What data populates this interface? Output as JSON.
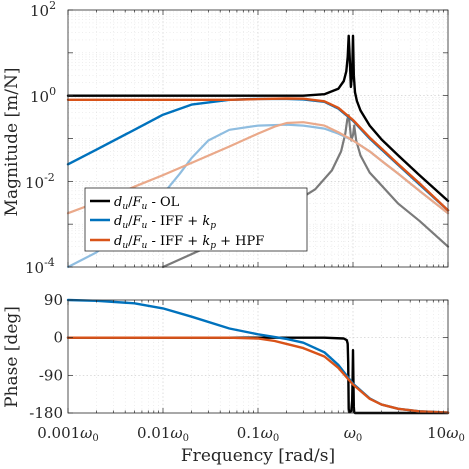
{
  "chart_data": [
    {
      "type": "line",
      "panel": "magnitude",
      "ylabel": "Magnitude [m/N]",
      "yscale": "log",
      "xscale": "log",
      "xlim": [
        0.001,
        10
      ],
      "ylim": [
        0.0001,
        100
      ],
      "ytick_labels": [
        "10^-4",
        "10^-2",
        "10^0",
        "10^2"
      ],
      "grid": true,
      "legend_placement": "lower-left",
      "legend": [
        {
          "label": "d_u/F_u - OL",
          "color": "#000000"
        },
        {
          "label": "d_u/F_u - IFF + k_p",
          "color": "#0072BD"
        },
        {
          "label": "d_u/F_u - IFF + k_p + HPF",
          "color": "#D95319"
        }
      ],
      "series": [
        {
          "name": "d_u/F_u - OL",
          "color": "#000000",
          "width": 2.4,
          "x": [
            0.001,
            0.01,
            0.1,
            0.3,
            0.5,
            0.7,
            0.8,
            0.85,
            0.88,
            0.9,
            0.92,
            0.95,
            0.98,
            1.0,
            1.02,
            1.05,
            1.1,
            1.2,
            1.5,
            2,
            3,
            5,
            10
          ],
          "y": [
            1.0,
            1.0,
            1.0,
            1.0,
            1.08,
            1.45,
            2.2,
            3.7,
            8.0,
            25.0,
            9.0,
            1.6,
            3.5,
            25.0,
            3.0,
            1.2,
            0.75,
            0.45,
            0.2,
            0.095,
            0.04,
            0.014,
            0.0035
          ]
        },
        {
          "name": "d_u/F_u - OL (secondary)",
          "color": "#7a7a7a",
          "width": 2.2,
          "x": [
            0.01,
            0.05,
            0.1,
            0.2,
            0.4,
            0.6,
            0.75,
            0.83,
            0.87,
            0.9,
            0.93,
            0.96,
            1.0,
            1.03,
            1.08,
            1.2,
            1.5,
            2,
            3,
            5,
            10
          ],
          "y": [
            0.0001,
            0.0005,
            0.0011,
            0.0025,
            0.0065,
            0.018,
            0.05,
            0.13,
            0.28,
            0.35,
            0.18,
            0.09,
            0.12,
            0.2,
            0.09,
            0.04,
            0.016,
            0.008,
            0.003,
            0.0012,
            0.0003
          ]
        },
        {
          "name": "d_u/F_u - IFF + k_p",
          "color": "#0072BD",
          "width": 2.4,
          "x": [
            0.001,
            0.002,
            0.005,
            0.01,
            0.02,
            0.05,
            0.1,
            0.2,
            0.3,
            0.5,
            0.7,
            1.0,
            1.5,
            2,
            3,
            5,
            10
          ],
          "y": [
            0.025,
            0.055,
            0.16,
            0.36,
            0.62,
            0.8,
            0.84,
            0.84,
            0.82,
            0.72,
            0.5,
            0.26,
            0.1,
            0.055,
            0.024,
            0.0085,
            0.0021
          ]
        },
        {
          "name": "d_u/F_u - IFF + k_p (secondary)",
          "color": "#8fbde0",
          "width": 2.2,
          "x": [
            0.001,
            0.002,
            0.005,
            0.01,
            0.015,
            0.02,
            0.03,
            0.05,
            0.1,
            0.2,
            0.3,
            0.5,
            0.7,
            1.0,
            1.5,
            2,
            3,
            5,
            10
          ],
          "y": [
            0.0001,
            0.00022,
            0.0011,
            0.005,
            0.015,
            0.035,
            0.09,
            0.16,
            0.2,
            0.21,
            0.2,
            0.17,
            0.13,
            0.09,
            0.05,
            0.03,
            0.015,
            0.006,
            0.0018
          ]
        },
        {
          "name": "d_u/F_u - IFF + k_p + HPF",
          "color": "#D95319",
          "width": 2.4,
          "x": [
            0.001,
            0.01,
            0.05,
            0.1,
            0.2,
            0.3,
            0.5,
            0.7,
            1.0,
            1.5,
            2,
            3,
            5,
            10
          ],
          "y": [
            0.8,
            0.8,
            0.8,
            0.83,
            0.86,
            0.85,
            0.74,
            0.52,
            0.27,
            0.105,
            0.058,
            0.025,
            0.009,
            0.0021
          ]
        },
        {
          "name": "d_u/F_u - IFF + k_p + HPF (secondary)",
          "color": "#eaa98a",
          "width": 2.2,
          "x": [
            0.001,
            0.002,
            0.005,
            0.01,
            0.02,
            0.05,
            0.1,
            0.15,
            0.2,
            0.3,
            0.5,
            0.7,
            1.0,
            1.5,
            2,
            3,
            5,
            10
          ],
          "y": [
            0.0018,
            0.0032,
            0.0075,
            0.014,
            0.027,
            0.065,
            0.13,
            0.19,
            0.23,
            0.24,
            0.2,
            0.14,
            0.09,
            0.05,
            0.03,
            0.015,
            0.006,
            0.0018
          ]
        }
      ]
    },
    {
      "type": "line",
      "panel": "phase",
      "ylabel": "Phase [deg]",
      "xlabel": "Frequency [rad/s]",
      "xscale": "log",
      "xlim": [
        0.001,
        10
      ],
      "ylim": [
        -180,
        90
      ],
      "yticks": [
        -180,
        -90,
        0,
        90
      ],
      "xtick_labels": [
        "0.001ω₀",
        "0.01ω₀",
        "0.1ω₀",
        "ω₀",
        "10ω₀"
      ],
      "grid": true,
      "series": [
        {
          "name": "d_u/F_u - OL",
          "color": "#000000",
          "width": 2.4,
          "x": [
            0.001,
            0.01,
            0.1,
            0.5,
            0.8,
            0.86,
            0.88,
            0.89,
            0.9,
            0.91,
            0.93,
            0.96,
            0.98,
            0.99,
            1.0,
            1.01,
            1.02,
            1.03,
            1.05,
            1.1,
            1.3,
            2,
            5,
            10
          ],
          "y": [
            0,
            0,
            0,
            0,
            -2,
            -6,
            -15,
            -60,
            -170,
            -178,
            -178,
            -175,
            -150,
            -100,
            -30,
            -100,
            -165,
            -178,
            -180,
            -180,
            -180,
            -180,
            -180,
            -180
          ]
        },
        {
          "name": "d_u/F_u - IFF + k_p",
          "color": "#0072BD",
          "width": 2.4,
          "x": [
            0.001,
            0.002,
            0.005,
            0.01,
            0.02,
            0.05,
            0.1,
            0.2,
            0.3,
            0.5,
            0.7,
            1.0,
            1.5,
            2,
            3,
            5,
            10
          ],
          "y": [
            90,
            88,
            82,
            70,
            50,
            22,
            8,
            -3,
            -12,
            -35,
            -65,
            -110,
            -145,
            -160,
            -170,
            -176,
            -179
          ]
        },
        {
          "name": "d_u/F_u - IFF + k_p + HPF",
          "color": "#D95319",
          "width": 2.4,
          "x": [
            0.001,
            0.01,
            0.05,
            0.1,
            0.15,
            0.2,
            0.3,
            0.5,
            0.7,
            1.0,
            1.5,
            2,
            3,
            5,
            10
          ],
          "y": [
            0,
            0,
            0,
            -2,
            -8,
            -15,
            -25,
            -45,
            -72,
            -112,
            -146,
            -160,
            -170,
            -176,
            -179
          ]
        }
      ]
    }
  ]
}
